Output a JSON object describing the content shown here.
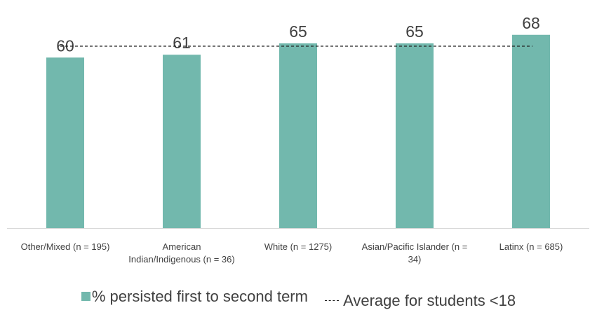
{
  "chart_data": {
    "type": "bar",
    "categories": [
      "Other/Mixed (n = 195)",
      "American Indian/Indigenous (n = 36)",
      "White (n = 1275)",
      "Asian/Pacific Islander (n = 34)",
      "Latinx (n = 685)"
    ],
    "series": [
      {
        "name": "% persisted first to second term",
        "values": [
          60,
          61,
          65,
          65,
          68
        ],
        "color": "#72b8ad"
      }
    ],
    "reference_line": {
      "name": "Average for students <18",
      "value": 64,
      "style": "dashed",
      "color": "#222222"
    },
    "data_labels": [
      "60",
      "61",
      "65",
      "65",
      "68"
    ],
    "ylim": [
      0,
      80
    ],
    "grid": false,
    "legend_position": "bottom"
  },
  "legend": {
    "bar_label": "% persisted first to second term",
    "line_label": "Average for students <18"
  }
}
